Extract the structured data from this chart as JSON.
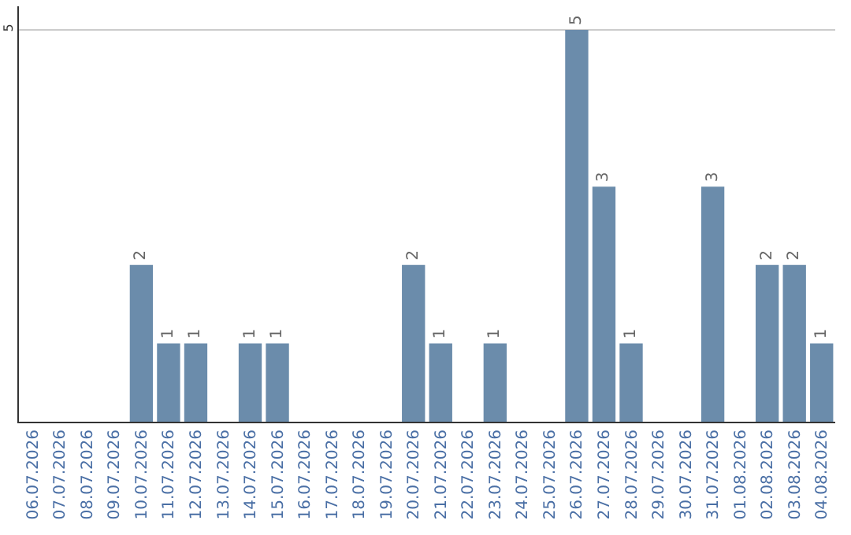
{
  "chart_data": {
    "type": "bar",
    "categories": [
      "06.07.2026",
      "07.07.2026",
      "08.07.2026",
      "09.07.2026",
      "10.07.2026",
      "11.07.2026",
      "12.07.2026",
      "13.07.2026",
      "14.07.2026",
      "15.07.2026",
      "16.07.2026",
      "17.07.2026",
      "18.07.2026",
      "19.07.2026",
      "20.07.2026",
      "21.07.2026",
      "22.07.2026",
      "23.07.2026",
      "24.07.2026",
      "25.07.2026",
      "26.07.2026",
      "27.07.2026",
      "28.07.2026",
      "29.07.2026",
      "30.07.2026",
      "31.07.2026",
      "01.08.2026",
      "02.08.2026",
      "03.08.2026",
      "04.08.2026"
    ],
    "values": [
      0,
      0,
      0,
      0,
      2,
      1,
      1,
      0,
      1,
      1,
      0,
      0,
      0,
      0,
      2,
      1,
      0,
      1,
      0,
      0,
      5,
      3,
      1,
      0,
      0,
      3,
      0,
      2,
      2,
      1
    ],
    "value_labels": [
      null,
      null,
      null,
      null,
      "2",
      "1",
      "1",
      null,
      "1",
      "1",
      null,
      null,
      null,
      null,
      "2",
      "1",
      null,
      "1",
      null,
      null,
      "5",
      "3",
      "1",
      null,
      null,
      "3",
      null,
      "2",
      "2",
      "1"
    ],
    "color": "#6b8cab",
    "ylim": [
      0,
      5.3
    ],
    "yticks": [
      5
    ],
    "grid": "y",
    "legend": false
  }
}
